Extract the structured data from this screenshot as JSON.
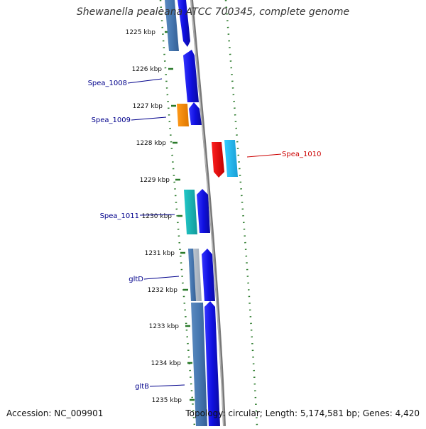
{
  "title": "Shewanella pealeana ATCC 700345, complete genome",
  "footer": {
    "accession": "Accession: NC_009901",
    "summary": "Topology: circular; Length: 5,174,581 bp; Genes: 4,420"
  },
  "colors": {
    "backbone": "#8a8a8a",
    "tick": "#2a7a2a",
    "cds": "#1010e0",
    "label_blue": "#00008b",
    "label_red": "#cc0000"
  },
  "ticks": [
    {
      "label": "1225 kbp"
    },
    {
      "label": "1226 kbp"
    },
    {
      "label": "1227 kbp"
    },
    {
      "label": "1228 kbp"
    },
    {
      "label": "1229 kbp"
    },
    {
      "label": "1230 kbp"
    },
    {
      "label": "1231 kbp"
    },
    {
      "label": "1232 kbp"
    },
    {
      "label": "1233 kbp"
    },
    {
      "label": "1234 kbp"
    },
    {
      "label": "1235 kbp"
    }
  ],
  "gene_labels": [
    {
      "name": "Spea_1008",
      "color": "blue"
    },
    {
      "name": "Spea_1009",
      "color": "blue"
    },
    {
      "name": "Spea_1010",
      "color": "red"
    },
    {
      "name": "Spea_1011",
      "color": "blue"
    },
    {
      "name": "gltD",
      "color": "blue"
    },
    {
      "name": "gltB",
      "color": "blue"
    }
  ]
}
